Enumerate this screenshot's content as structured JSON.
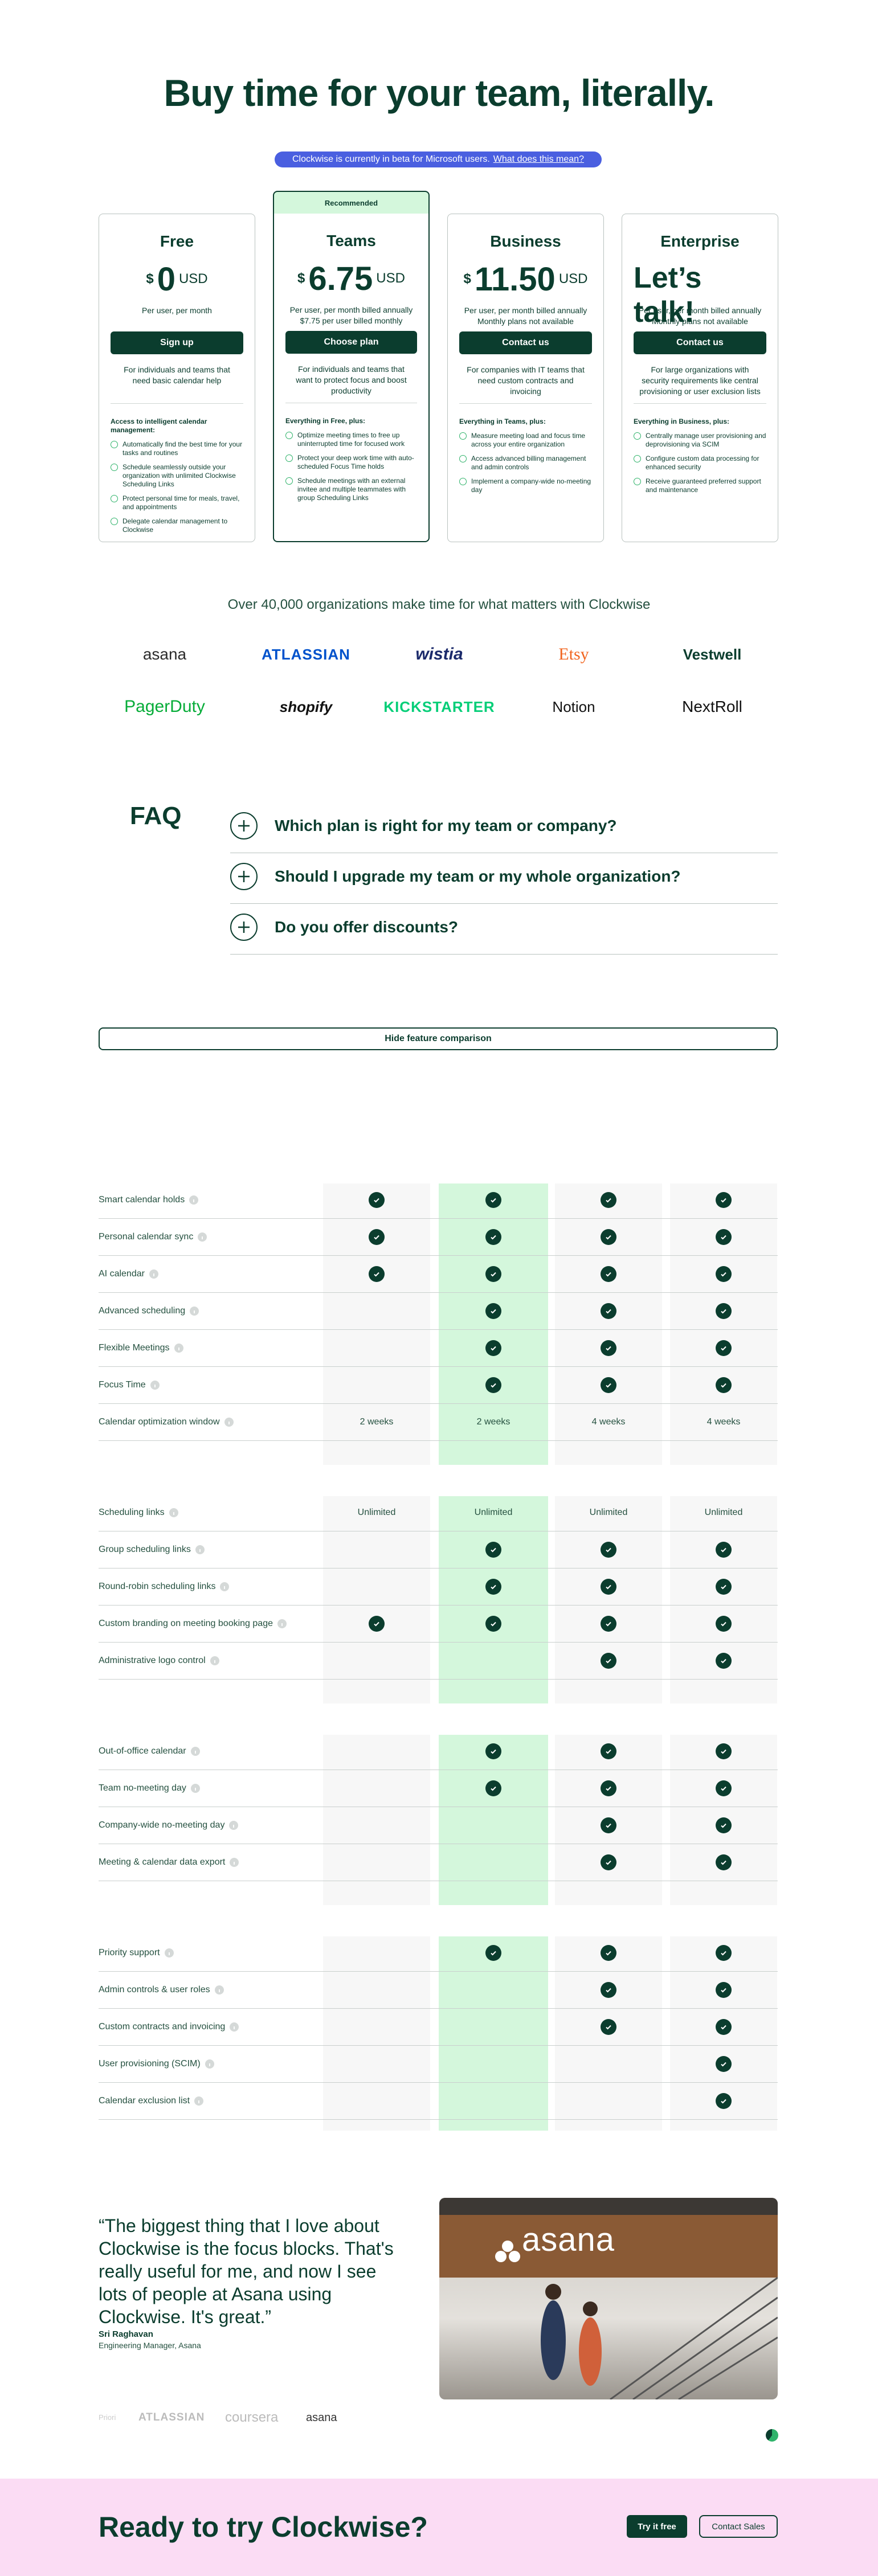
{
  "header": {
    "title": "Buy time for your team, literally.",
    "beta_text": "Clockwise is currently in beta for Microsoft users.",
    "beta_link": "What does this mean?"
  },
  "plans": [
    {
      "name": "Free",
      "currency": "$",
      "price": "0",
      "unit": "USD",
      "price_notes": [
        "Per user, per month"
      ],
      "button": "Sign up",
      "description": "For individuals and teams that need basic calendar help",
      "features_title": "Access to intelligent calendar management:",
      "features": [
        "Automatically find the best time for your tasks and routines",
        "Schedule seamlessly outside your organization with unlimited Clockwise Scheduling Links",
        "Protect personal time for meals, travel, and appointments",
        "Delegate calendar management to Clockwise"
      ]
    },
    {
      "name": "Teams",
      "badge": "Recommended",
      "currency": "$",
      "price": "6.75",
      "unit": "USD",
      "price_notes": [
        "Per user, per month billed annually",
        "$7.75 per user billed monthly"
      ],
      "button": "Choose plan",
      "description": "For individuals and teams that want to protect focus and boost productivity",
      "features_title": "Everything in Free, plus:",
      "features": [
        "Optimize meeting times to free up uninterrupted time for focused work",
        "Protect your deep work time with auto-scheduled Focus Time holds",
        "Schedule meetings with an external invitee and multiple teammates with group Scheduling Links"
      ]
    },
    {
      "name": "Business",
      "currency": "$",
      "price": "11.50",
      "unit": "USD",
      "price_notes": [
        "Per user, per month billed annually",
        "Monthly plans not available"
      ],
      "button": "Contact us",
      "description": "For companies with IT teams that need custom contracts and invoicing",
      "features_title": "Everything in Teams, plus:",
      "features": [
        "Measure meeting load and focus time across your entire organization",
        "Access advanced billing management and admin controls",
        "Implement a company-wide no-meeting day"
      ]
    },
    {
      "name": "Enterprise",
      "price_text": "Let’s talk!",
      "price_notes": [
        "Per user, per month billed annually",
        "Monthly plans not available"
      ],
      "button": "Contact us",
      "description": "For large organizations with security requirements like central provisioning or user exclusion lists",
      "features_title": "Everything in Business, plus:",
      "features": [
        "Centrally manage user provisioning and deprovisioning via SCIM",
        "Configure custom data processing for enhanced security",
        "Receive guaranteed preferred support and maintenance"
      ]
    }
  ],
  "social_proof": {
    "title": "Over 40,000 organizations make time for what matters with Clockwise",
    "logos": [
      "asana",
      "ATLASSIAN",
      "wistia",
      "Etsy",
      "Vestwell",
      "PagerDuty",
      "shopify",
      "KICKSTARTER",
      "Notion",
      "NextRoll"
    ]
  },
  "faq": {
    "title": "FAQ",
    "questions": [
      "Which plan is right for my team or company?",
      "Should I upgrade my team or my whole organization?",
      "Do you offer discounts?"
    ]
  },
  "comparison": {
    "toggle": "Hide feature comparison",
    "groups": [
      {
        "rows": [
          {
            "label": "Smart calendar holds",
            "cells": [
              true,
              true,
              true,
              true
            ]
          },
          {
            "label": "Personal calendar sync",
            "cells": [
              true,
              true,
              true,
              true
            ]
          },
          {
            "label": "AI calendar",
            "cells": [
              true,
              true,
              true,
              true
            ]
          },
          {
            "label": "Advanced scheduling",
            "cells": [
              false,
              true,
              true,
              true
            ]
          },
          {
            "label": "Flexible Meetings",
            "cells": [
              false,
              true,
              true,
              true
            ]
          },
          {
            "label": "Focus Time",
            "cells": [
              false,
              true,
              true,
              true
            ]
          },
          {
            "label": "Calendar optimization window",
            "cells": [
              "2 weeks",
              "2 weeks",
              "4 weeks",
              "4 weeks"
            ]
          }
        ]
      },
      {
        "rows": [
          {
            "label": "Scheduling links",
            "cells": [
              "Unlimited",
              "Unlimited",
              "Unlimited",
              "Unlimited"
            ]
          },
          {
            "label": "Group scheduling links",
            "cells": [
              false,
              true,
              true,
              true
            ]
          },
          {
            "label": "Round-robin scheduling links",
            "cells": [
              false,
              true,
              true,
              true
            ]
          },
          {
            "label": "Custom branding on meeting booking page",
            "cells": [
              true,
              true,
              true,
              true
            ]
          },
          {
            "label": "Administrative logo control",
            "cells": [
              false,
              false,
              true,
              true
            ]
          }
        ]
      },
      {
        "rows": [
          {
            "label": "Out-of-office calendar",
            "cells": [
              false,
              true,
              true,
              true
            ]
          },
          {
            "label": "Team no-meeting day",
            "cells": [
              false,
              true,
              true,
              true
            ]
          },
          {
            "label": "Company-wide no-meeting day",
            "cells": [
              false,
              false,
              true,
              true
            ]
          },
          {
            "label": "Meeting & calendar data export",
            "cells": [
              false,
              false,
              true,
              true
            ]
          }
        ]
      },
      {
        "rows": [
          {
            "label": "Priority support",
            "cells": [
              false,
              true,
              true,
              true
            ]
          },
          {
            "label": "Admin controls & user roles",
            "cells": [
              false,
              false,
              true,
              true
            ]
          },
          {
            "label": "Custom contracts and invoicing",
            "cells": [
              false,
              false,
              true,
              true
            ]
          },
          {
            "label": "User provisioning (SCIM)",
            "cells": [
              false,
              false,
              false,
              true
            ]
          },
          {
            "label": "Calendar exclusion list",
            "cells": [
              false,
              false,
              false,
              true
            ]
          }
        ]
      }
    ]
  },
  "testimonial": {
    "quote": "“The biggest thing that I love about Clockwise is the focus blocks. That's really useful for me, and now I see lots of people at Asana using Clockwise. It's great.”",
    "author": "Sri Raghavan",
    "role": "Engineering Manager, Asana",
    "photo_sign": "asana",
    "logos": [
      "Priori",
      "ATLASSIAN",
      "coursera",
      "asana"
    ]
  },
  "cta": {
    "title": "Ready to try Clockwise?",
    "primary": "Try it free",
    "secondary": "Contact Sales"
  }
}
